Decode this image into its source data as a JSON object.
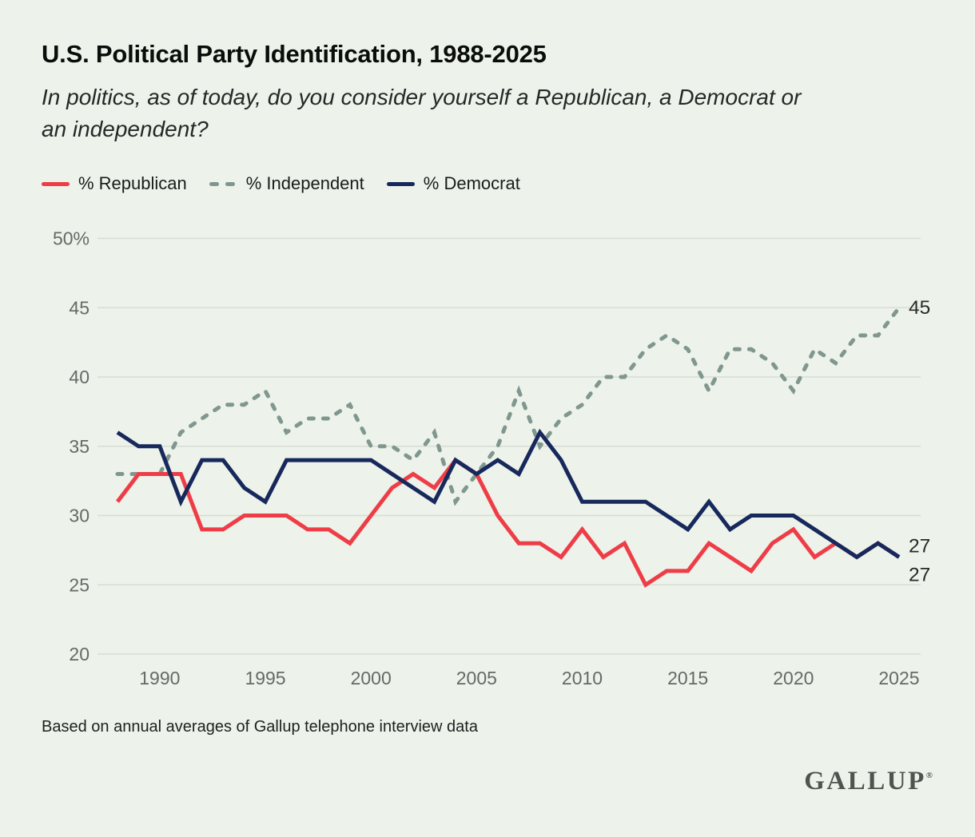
{
  "header": {
    "title": "U.S. Political Party Identification, 1988-2025",
    "subtitle": "In politics, as of today, do you consider yourself a Republican, a Democrat or\nan independent?"
  },
  "legend": [
    {
      "label": "% Republican",
      "color": "#ee3d47",
      "style": "solid"
    },
    {
      "label": "% Independent",
      "color": "#80978f",
      "style": "dashed"
    },
    {
      "label": "% Democrat",
      "color": "#17285c",
      "style": "solid"
    }
  ],
  "chart_data": {
    "type": "line",
    "title": "U.S. Political Party Identification, 1988-2025",
    "x": [
      1988,
      1989,
      1990,
      1991,
      1992,
      1993,
      1994,
      1995,
      1996,
      1997,
      1998,
      1999,
      2000,
      2001,
      2002,
      2003,
      2004,
      2005,
      2006,
      2007,
      2008,
      2009,
      2010,
      2011,
      2012,
      2013,
      2014,
      2015,
      2016,
      2017,
      2018,
      2019,
      2020,
      2021,
      2022,
      2023,
      2024,
      2025
    ],
    "series": [
      {
        "name": "% Independent",
        "color": "#80978f",
        "dash": true,
        "end_label": "45",
        "values": [
          33,
          33,
          33,
          36,
          37,
          38,
          38,
          39,
          36,
          37,
          37,
          38,
          35,
          35,
          34,
          36,
          31,
          33,
          35,
          39,
          35,
          37,
          38,
          40,
          40,
          42,
          43,
          42,
          39,
          42,
          42,
          41,
          39,
          42,
          41,
          43,
          43,
          45
        ]
      },
      {
        "name": "% Republican",
        "color": "#ee3d47",
        "dash": false,
        "end_label": "27",
        "values": [
          31,
          33,
          33,
          33,
          29,
          29,
          30,
          30,
          30,
          29,
          29,
          28,
          30,
          32,
          33,
          32,
          34,
          33,
          30,
          28,
          28,
          27,
          29,
          27,
          28,
          25,
          26,
          26,
          28,
          27,
          26,
          28,
          29,
          27,
          28,
          27,
          28,
          27
        ]
      },
      {
        "name": "% Democrat",
        "color": "#17285c",
        "dash": false,
        "end_label": "27",
        "values": [
          36,
          35,
          35,
          31,
          34,
          34,
          32,
          31,
          34,
          34,
          34,
          34,
          34,
          33,
          32,
          31,
          34,
          33,
          34,
          33,
          36,
          34,
          31,
          31,
          31,
          31,
          30,
          29,
          31,
          29,
          30,
          30,
          30,
          29,
          28,
          27,
          28,
          27
        ]
      }
    ],
    "ylim": [
      20,
      50
    ],
    "yticks": [
      {
        "value": 50,
        "label": "50%"
      },
      {
        "value": 45,
        "label": "45"
      },
      {
        "value": 40,
        "label": "40"
      },
      {
        "value": 35,
        "label": "35"
      },
      {
        "value": 30,
        "label": "30"
      },
      {
        "value": 25,
        "label": "25"
      },
      {
        "value": 20,
        "label": "20"
      }
    ],
    "xticks": [
      1990,
      1995,
      2000,
      2005,
      2010,
      2015,
      2020,
      2025
    ],
    "grid": true,
    "legend_position": "top"
  },
  "footer": {
    "note": "Based on annual averages of Gallup telephone interview data",
    "logo": "GALLUP",
    "logo_reg": "®"
  },
  "colors": {
    "background": "#edf2ea",
    "gridline": "#d8ded4",
    "tick_text": "#626c65",
    "end_label_text": "#262b28"
  }
}
